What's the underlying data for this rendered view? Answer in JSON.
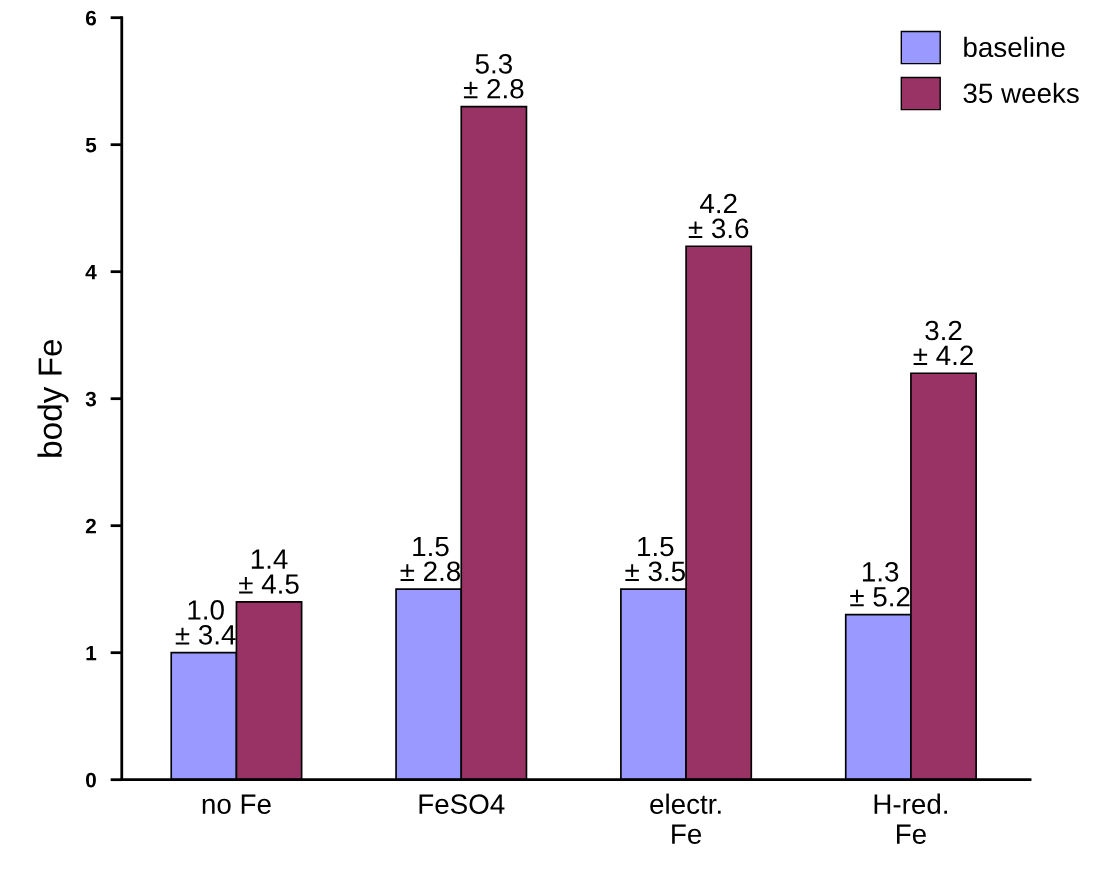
{
  "chart_data": {
    "type": "bar",
    "ylabel": "body Fe",
    "categories": [
      "no Fe",
      "FeSO4",
      "electr.\nFe",
      "H-red.\nFe"
    ],
    "series": [
      {
        "name": "baseline",
        "color": "#9999ff",
        "values": [
          1.0,
          1.5,
          1.5,
          1.3
        ],
        "value_labels": [
          "1.0\n± 3.4",
          "1.5\n± 2.8",
          "1.5\n± 3.5",
          "1.3\n± 5.2"
        ]
      },
      {
        "name": "35 weeks",
        "color": "#993366",
        "values": [
          1.4,
          5.3,
          4.2,
          3.2
        ],
        "value_labels": [
          "1.4\n± 4.5",
          "5.3\n± 2.8",
          "4.2\n± 3.6",
          "3.2\n± 4.2"
        ]
      }
    ],
    "ylim": [
      0,
      6
    ],
    "yticks": [
      0,
      1,
      2,
      3,
      4,
      5,
      6
    ],
    "grid": false,
    "legend": "top right"
  }
}
